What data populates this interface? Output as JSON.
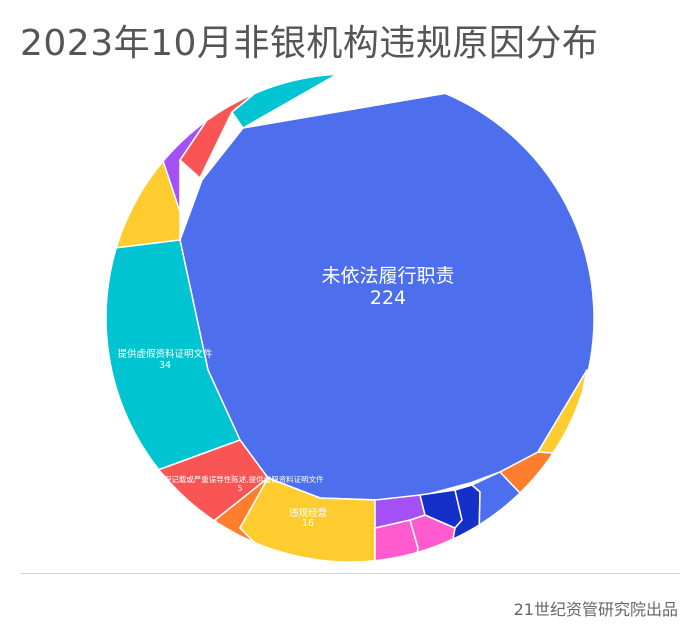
{
  "header": {
    "title": "2023年10月非银机构违规原因分布"
  },
  "footer": {
    "source": "21世纪资管研究院出品"
  },
  "colors": {
    "blue": "#4d6fed",
    "cyan": "#00c4d1",
    "yellow": "#ffcc2f",
    "purple": "#a550f5",
    "red": "#fa5555",
    "orange": "#ff7e2e",
    "pink": "#ff5bcf",
    "navy": "#1530c8",
    "white": "#ffffff"
  },
  "chart_data": {
    "type": "voronoi-treemap",
    "title": "2023年10月非银机构违规原因分布",
    "series": [
      {
        "name": "未依法履行职责",
        "value": 224,
        "label": "未依法履行职责",
        "value_label": "224"
      },
      {
        "name": "提供虚假资料证明文件",
        "value": 34,
        "label": "提供虚假资料证明文件",
        "value_label": "34"
      },
      {
        "name": "违规经营",
        "value": 16,
        "label": "违规经营",
        "value_label": "16"
      },
      {
        "name": "虚假记载或严重误导性陈述,提供虚假资料证明文件",
        "value": 5,
        "label": "虚假记载或严重误导性陈述,提供虚假资料证明文件",
        "value_label": "5"
      }
    ]
  }
}
